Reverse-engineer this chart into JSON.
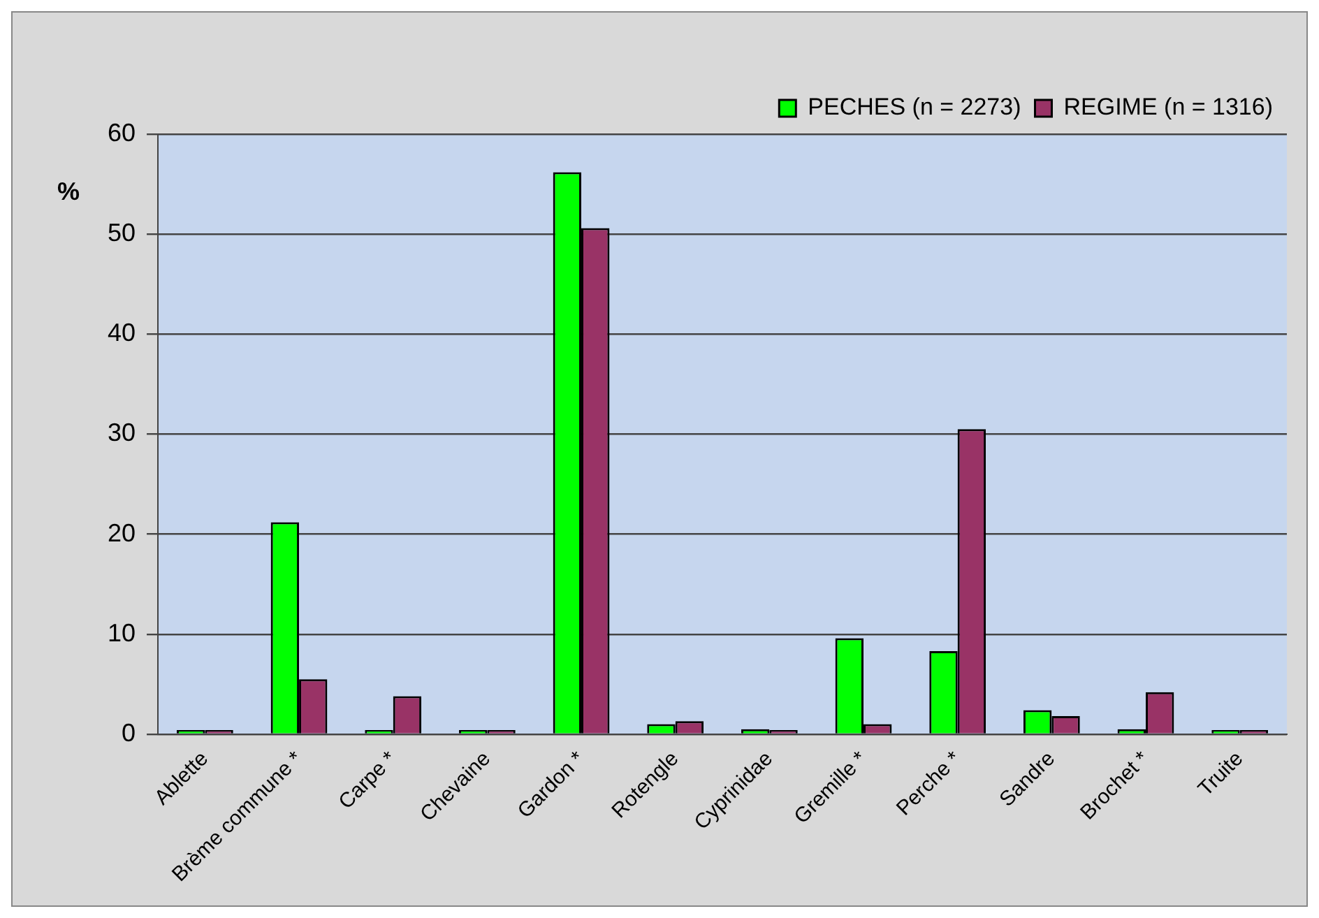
{
  "chart_data": {
    "type": "bar",
    "ylabel": "%",
    "categories": [
      "Ablette",
      "Brème commune *",
      "Carpe *",
      "Chevaine",
      "Gardon *",
      "Rotengle",
      "Cyprinidae",
      "Gremille *",
      "Perche *",
      "Sandre",
      "Brochet *",
      "Truite"
    ],
    "series": [
      {
        "name": "PECHES (n = 2273)",
        "color": "#00ff00",
        "values": [
          0.1,
          21.2,
          0.2,
          0.1,
          56.2,
          1.0,
          0.5,
          9.6,
          8.3,
          2.4,
          0.5,
          0.1
        ]
      },
      {
        "name": "REGIME (n = 1316)",
        "color": "#993366",
        "values": [
          0.3,
          5.5,
          3.8,
          0.1,
          50.6,
          1.3,
          0.3,
          1.0,
          30.5,
          1.8,
          4.2,
          0.1
        ]
      }
    ],
    "ylim": [
      0,
      60
    ],
    "yticks": [
      0,
      10,
      20,
      30,
      40,
      50,
      60
    ],
    "grid": "y",
    "legend": "top right"
  }
}
